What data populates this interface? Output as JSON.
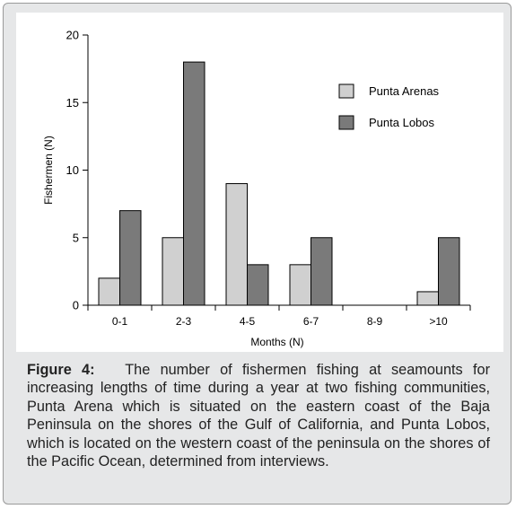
{
  "chart_data": {
    "type": "bar",
    "categories": [
      "0-1",
      "2-3",
      "4-5",
      "6-7",
      "8-9",
      ">10"
    ],
    "series": [
      {
        "name": "Punta Arenas",
        "color": "#d0d0d0",
        "values": [
          2,
          5,
          9,
          3,
          0,
          1
        ]
      },
      {
        "name": "Punta Lobos",
        "color": "#7a7a7a",
        "values": [
          7,
          18,
          3,
          5,
          0,
          5
        ]
      }
    ],
    "xlabel": "Months (N)",
    "ylabel": "Fishermen (N)",
    "ylim": [
      0,
      20
    ],
    "yticks": [
      0,
      5,
      10,
      15,
      20
    ],
    "grid": false,
    "legend_position": "top-right"
  },
  "caption": {
    "label": "Figure 4:",
    "text": "The number of fishermen fishing at seamounts for increasing lengths of time during a year at two fishing communities, Punta Arena which is situated on the eastern coast of the Baja Peninsula on the shores of the Gulf of California, and Punta Lobos, which is located on the western coast of the peninsula on the shores of the Pacific Ocean, determined from interviews."
  }
}
